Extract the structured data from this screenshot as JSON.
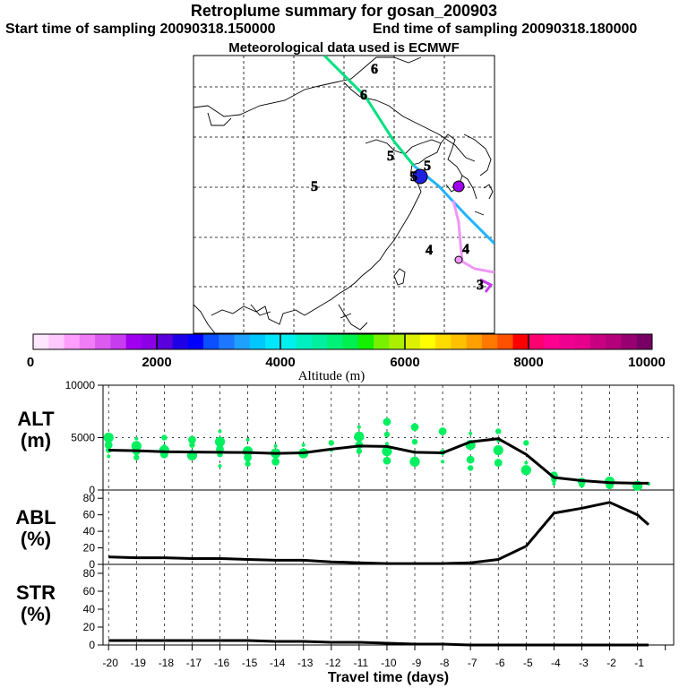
{
  "header": {
    "title": "Retroplume summary for gosan_200903",
    "start_sampling": "Start time of sampling 20090318.150000",
    "end_sampling": "End time of sampling 20090318.180000",
    "met_data": "Meteorological data used is ECMWF"
  },
  "colorbar": {
    "colors": [
      "#ffe6ff",
      "#ffc8ff",
      "#ff9eff",
      "#f07cf6",
      "#dc5af0",
      "#c83cf0",
      "#a000f0",
      "#8c00e6",
      "#5a00dc",
      "#1e00e6",
      "#0000ff",
      "#0a50ff",
      "#1e78ff",
      "#1ea0ff",
      "#00c8ff",
      "#00e6ff",
      "#00f0f0",
      "#00f0c0",
      "#00f0a0",
      "#00f078",
      "#00f050",
      "#14f000",
      "#78f000",
      "#aaf000",
      "#dcf000",
      "#ffff00",
      "#ffdc00",
      "#ffc000",
      "#ffa000",
      "#ff7800",
      "#ff5000",
      "#ff0000",
      "#ff0070",
      "#ff0090",
      "#f00090",
      "#e6008c",
      "#c80080",
      "#b4007a",
      "#960070",
      "#780064"
    ],
    "labels": [
      "0",
      "2000",
      "4000",
      "6000",
      "8000",
      "10000"
    ],
    "title": "Altitude (m)"
  },
  "map_labels": [
    {
      "text": "6",
      "color": "#00e6ff"
    },
    {
      "text": "6",
      "color": "#1e3cff"
    },
    {
      "text": "5",
      "color": "#c8f000"
    },
    {
      "text": "5",
      "color": "#00f0a0"
    },
    {
      "text": "5",
      "color": "#00f0a0"
    },
    {
      "text": "5",
      "color": "#00f0a0"
    },
    {
      "text": "4",
      "color": "#1e78ff"
    },
    {
      "text": "4",
      "color": "#f08cf6"
    },
    {
      "text": "3",
      "color": "#c83cf0"
    }
  ],
  "chart_data": [
    {
      "type": "line",
      "panel": "ALT",
      "ylabel": "ALT (m)",
      "ylim": [
        0,
        10000
      ],
      "yticks": [
        0,
        5000,
        10000
      ],
      "x": [
        -20,
        -19,
        -18,
        -17,
        -16,
        -15,
        -14,
        -13,
        -12,
        -11,
        -10,
        -9,
        -8,
        -7,
        -6,
        -5,
        -4,
        -3,
        -2,
        -1,
        -0.6
      ],
      "values": [
        3800,
        3750,
        3650,
        3620,
        3600,
        3580,
        3500,
        3550,
        3900,
        4200,
        4150,
        3600,
        3550,
        4600,
        4900,
        3400,
        1200,
        900,
        700,
        650,
        650
      ],
      "cluster_color": "#00f060",
      "clusters": [
        {
          "x": -20,
          "values": [
            3200,
            3800,
            4300,
            5000
          ]
        },
        {
          "x": -19,
          "values": [
            3100,
            3700,
            4200,
            4900
          ]
        },
        {
          "x": -18,
          "values": [
            3400,
            3800,
            4200,
            5000
          ]
        },
        {
          "x": -17,
          "values": [
            3300,
            3700,
            4300,
            4800
          ]
        },
        {
          "x": -16,
          "values": [
            2300,
            3400,
            3900,
            4600,
            5600
          ]
        },
        {
          "x": -15,
          "values": [
            2500,
            3100,
            3700,
            4800
          ]
        },
        {
          "x": -14,
          "values": [
            2700,
            3500,
            4200
          ]
        },
        {
          "x": -13,
          "values": [
            3500,
            4300
          ]
        },
        {
          "x": -12,
          "values": [
            3800,
            4500
          ]
        },
        {
          "x": -11,
          "values": [
            3700,
            4300,
            5100,
            6000
          ]
        },
        {
          "x": -10,
          "values": [
            2800,
            3700,
            4400,
            5300,
            6500
          ]
        },
        {
          "x": -9,
          "values": [
            2700,
            3600,
            4600,
            6000
          ]
        },
        {
          "x": -8,
          "values": [
            2700,
            3600,
            5600
          ]
        },
        {
          "x": -7,
          "values": [
            2100,
            2900,
            4300,
            5400
          ]
        },
        {
          "x": -6,
          "values": [
            2600,
            3800,
            4700,
            5600
          ]
        },
        {
          "x": -5,
          "values": [
            1900,
            2600,
            4500
          ]
        },
        {
          "x": -4,
          "values": [
            600,
            1000,
            1400
          ]
        },
        {
          "x": -3,
          "values": [
            500,
            800
          ]
        },
        {
          "x": -2,
          "values": [
            450,
            800
          ]
        },
        {
          "x": -1,
          "values": [
            400,
            700
          ]
        },
        {
          "x": -0.6,
          "values": [
            600
          ]
        }
      ]
    },
    {
      "type": "line",
      "panel": "ABL",
      "ylabel": "ABL (%)",
      "ylim": [
        0,
        90
      ],
      "yticks": [
        0,
        20,
        40,
        60,
        80
      ],
      "x": [
        -20,
        -19,
        -18,
        -17,
        -16,
        -15,
        -14,
        -13,
        -12,
        -11,
        -10,
        -9,
        -8,
        -7,
        -6,
        -5,
        -4,
        -3,
        -2,
        -1,
        -0.6
      ],
      "values": [
        9,
        8,
        8,
        7,
        7,
        6,
        5,
        5,
        3,
        2,
        1,
        1,
        1,
        2,
        6,
        22,
        62,
        68,
        75,
        60,
        48
      ]
    },
    {
      "type": "line",
      "panel": "STR",
      "ylabel": "STR (%)",
      "ylim": [
        0,
        90
      ],
      "yticks": [
        0,
        20,
        40,
        60,
        80
      ],
      "x": [
        -20,
        -19,
        -18,
        -17,
        -16,
        -15,
        -14,
        -13,
        -12,
        -11,
        -10,
        -9,
        -8,
        -7,
        -6,
        -5,
        -4,
        -3,
        -2,
        -1,
        -0.6
      ],
      "values": [
        5,
        5,
        5,
        5,
        5,
        5,
        4,
        4,
        3,
        3,
        2,
        1,
        1,
        0,
        0,
        0,
        0,
        0,
        0,
        0,
        0
      ]
    }
  ],
  "panel_labels": {
    "alt": {
      "top": "ALT",
      "bottom": "(m)"
    },
    "abl": {
      "top": "ABL",
      "bottom": "(%)"
    },
    "str": {
      "top": "STR",
      "bottom": "(%)"
    }
  },
  "x_axis": {
    "ticks": [
      -20,
      -19,
      -18,
      -17,
      -16,
      -15,
      -14,
      -13,
      -12,
      -11,
      -10,
      -9,
      -8,
      -7,
      -6,
      -5,
      -4,
      -3,
      -2,
      -1,
      0
    ],
    "tick_labels": [
      "-20",
      "-19",
      "-18",
      "-17",
      "-16",
      "-15",
      "-14",
      "-13",
      "-12",
      "-11",
      "-10",
      "-9",
      "-8",
      "-7",
      "-6",
      "-5",
      "-4",
      "-3",
      "-2",
      "-1",
      ""
    ],
    "label": "Travel time (days)"
  }
}
